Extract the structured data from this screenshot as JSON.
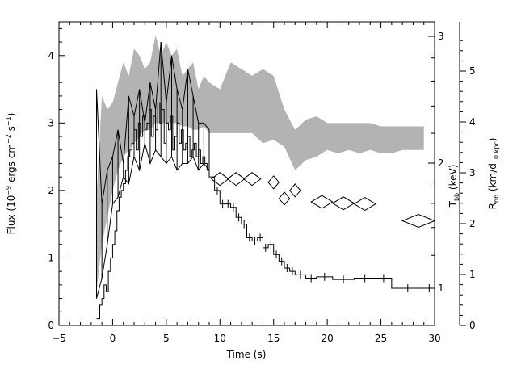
{
  "chart_data": {
    "type": "line",
    "xlabel": "Time (s)",
    "ylabel_left": "Flux (10",
    "ylabel_left_exp1": "−9",
    "ylabel_left_mid": " ergs cm",
    "ylabel_left_exp2": "−2",
    "ylabel_left_mid2": " s",
    "ylabel_left_exp3": "−1",
    "ylabel_left_end": ")",
    "ylabel_right1_main": "T",
    "ylabel_right1_sub": "bb",
    "ylabel_right1_end": " (keV)",
    "ylabel_right2_main": "R",
    "ylabel_right2_sub": "bb",
    "ylabel_right2_mid": " (km/d",
    "ylabel_right2_sub2": "10 kpc",
    "ylabel_right2_end": ")",
    "xlim": [
      -5,
      30
    ],
    "ylim_left": [
      0,
      4.5
    ],
    "x_ticks": [
      -5,
      0,
      5,
      10,
      15,
      20,
      25,
      30
    ],
    "y_ticks_left": [
      0,
      1,
      2,
      3,
      4
    ],
    "y_ticks_T": [
      1,
      2,
      3
    ],
    "y_ticks_R": [
      0,
      1,
      2,
      3,
      4,
      5
    ],
    "flux_step": {
      "x": [
        -1.5,
        -1.2,
        -1.0,
        -0.8,
        -0.6,
        -0.4,
        -0.2,
        0.0,
        0.2,
        0.4,
        0.6,
        0.8,
        1.0,
        1.2,
        1.4,
        1.6,
        1.8,
        2.0,
        2.2,
        2.4,
        2.6,
        2.8,
        3.0,
        3.2,
        3.4,
        3.6,
        3.8,
        4.0,
        4.2,
        4.4,
        4.6,
        4.8,
        5.0,
        5.2,
        5.4,
        5.6,
        5.8,
        6.0,
        6.2,
        6.4,
        6.6,
        6.8,
        7.0,
        7.2,
        7.4,
        7.6,
        7.8,
        8.0,
        8.2,
        8.4,
        8.6,
        8.8,
        9.0,
        9.5,
        10.0,
        10.5,
        11.0,
        11.5,
        12.0,
        12.5,
        13.0,
        13.5,
        14.0,
        14.5,
        15.0,
        15.5,
        16.0,
        16.5,
        17.0,
        18.0,
        19.0,
        20.5,
        22.5,
        24.5,
        26.0,
        29.0,
        30.0
      ],
      "y": [
        0.1,
        0.3,
        0.4,
        0.6,
        0.5,
        0.8,
        1.0,
        1.2,
        1.4,
        1.7,
        1.9,
        2.0,
        2.1,
        2.3,
        2.5,
        2.6,
        2.7,
        2.9,
        2.6,
        3.0,
        2.8,
        3.1,
        2.9,
        3.0,
        3.2,
        2.8,
        3.1,
        2.9,
        3.3,
        3.0,
        3.2,
        2.7,
        3.0,
        2.9,
        3.1,
        2.6,
        2.8,
        3.0,
        2.7,
        2.9,
        2.6,
        2.7,
        2.8,
        2.5,
        2.6,
        2.7,
        2.5,
        2.6,
        2.4,
        2.5,
        2.4,
        2.3,
        2.2,
        2.0,
        1.8,
        1.8,
        1.75,
        1.6,
        1.5,
        1.3,
        1.25,
        1.3,
        1.15,
        1.2,
        1.05,
        0.95,
        0.85,
        0.8,
        0.75,
        0.7,
        0.72,
        0.68,
        0.7,
        0.7,
        0.55,
        0.55,
        0.55
      ]
    },
    "T_band": {
      "x": [
        -1.5,
        -1.0,
        -0.5,
        0.0,
        0.5,
        1.0,
        1.5,
        2.0,
        2.5,
        3.0,
        3.5,
        4.0,
        4.5,
        5.0,
        5.5,
        6.0,
        6.5,
        7.0,
        7.5,
        8.0,
        8.5,
        9.0,
        10.0,
        11.0,
        12.0,
        13.0,
        14.0,
        15.0,
        16.0,
        17.0,
        18.0,
        19.0,
        20.0,
        21.0,
        22.0,
        23.0,
        24.0,
        25.0,
        26.0,
        27.0,
        28.0,
        29.0
      ],
      "upper": [
        1.9,
        3.4,
        3.2,
        3.3,
        3.6,
        3.9,
        3.7,
        4.1,
        4.0,
        3.8,
        3.9,
        4.3,
        4.0,
        4.2,
        4.0,
        4.1,
        3.7,
        3.8,
        3.9,
        3.5,
        3.7,
        3.6,
        3.5,
        3.9,
        3.8,
        3.7,
        3.8,
        3.7,
        3.2,
        2.9,
        3.05,
        3.1,
        3.0,
        3.0,
        3.0,
        3.0,
        3.0,
        2.95,
        2.95,
        2.95,
        2.95,
        2.95
      ],
      "lower": [
        0.5,
        1.2,
        1.6,
        2.0,
        2.3,
        2.5,
        2.6,
        2.7,
        2.8,
        2.9,
        2.9,
        3.0,
        3.0,
        3.0,
        3.0,
        3.0,
        2.95,
        2.95,
        2.9,
        2.9,
        2.95,
        2.85,
        2.85,
        2.85,
        2.85,
        2.85,
        2.7,
        2.75,
        2.65,
        2.3,
        2.45,
        2.5,
        2.6,
        2.55,
        2.6,
        2.55,
        2.6,
        2.55,
        2.55,
        2.6,
        2.6,
        2.6
      ]
    },
    "R_band": {
      "x": [
        -1.5,
        -1.0,
        -0.5,
        0.0,
        0.5,
        1.0,
        1.5,
        2.0,
        2.5,
        3.0,
        3.5,
        4.0,
        4.5,
        5.0,
        5.5,
        6.0,
        6.5,
        7.0,
        7.5,
        8.0,
        8.5,
        9.0
      ],
      "upper": [
        3.5,
        1.8,
        2.3,
        2.5,
        2.9,
        2.4,
        3.4,
        3.1,
        3.5,
        3.0,
        3.6,
        3.2,
        4.2,
        3.3,
        4.0,
        3.5,
        3.2,
        3.8,
        3.4,
        3.0,
        3.0,
        2.9
      ],
      "lower": [
        0.4,
        0.7,
        1.2,
        1.8,
        1.9,
        2.2,
        2.1,
        2.5,
        2.3,
        2.7,
        2.4,
        2.6,
        2.5,
        2.4,
        2.5,
        2.3,
        2.4,
        2.4,
        2.5,
        2.3,
        2.4,
        2.3
      ]
    },
    "R_diamonds": [
      {
        "x": 10.0,
        "y": 2.17,
        "hw": 0.8
      },
      {
        "x": 11.5,
        "y": 2.17,
        "hw": 0.8
      },
      {
        "x": 13.0,
        "y": 2.17,
        "hw": 0.8
      },
      {
        "x": 15.0,
        "y": 2.12,
        "hw": 0.5
      },
      {
        "x": 16.0,
        "y": 1.88,
        "hw": 0.5
      },
      {
        "x": 17.0,
        "y": 2.0,
        "hw": 0.5
      },
      {
        "x": 19.5,
        "y": 1.83,
        "hw": 1.0
      },
      {
        "x": 21.5,
        "y": 1.81,
        "hw": 1.0
      },
      {
        "x": 23.5,
        "y": 1.8,
        "hw": 1.0
      },
      {
        "x": 28.5,
        "y": 1.55,
        "hw": 1.5
      }
    ],
    "colors": {
      "band": "#b3b3b3",
      "line": "#000000"
    }
  }
}
